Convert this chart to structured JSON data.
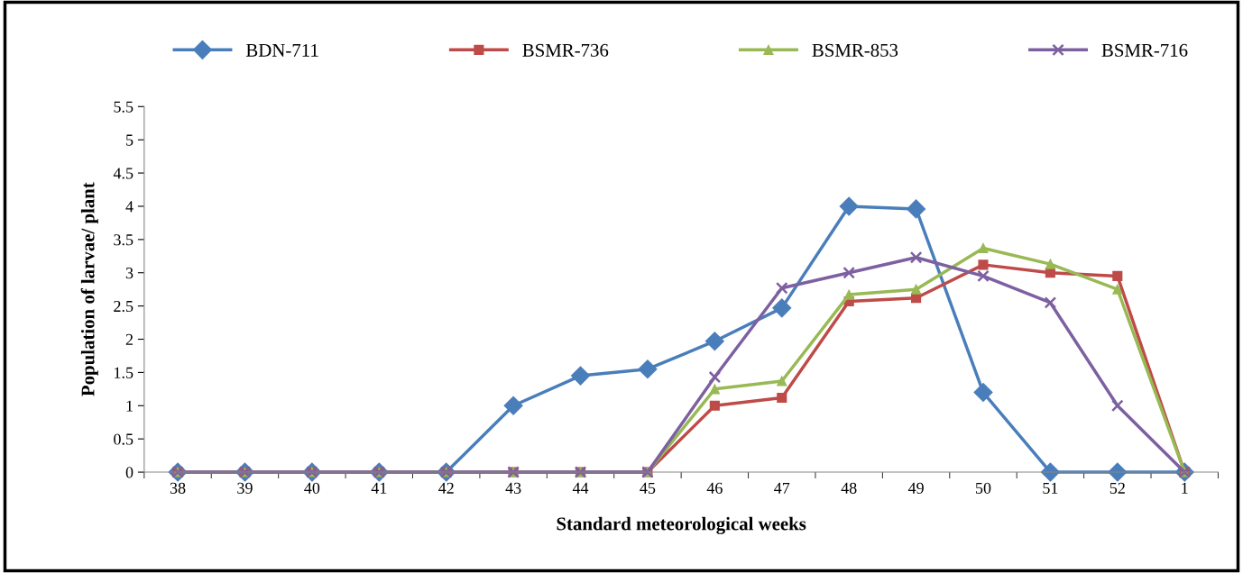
{
  "chart_data": {
    "type": "line",
    "xlabel": "Standard meteorological weeks",
    "ylabel": "Population of larvae/ plant",
    "categories": [
      "38",
      "39",
      "40",
      "41",
      "42",
      "43",
      "44",
      "45",
      "46",
      "47",
      "48",
      "49",
      "50",
      "51",
      "52",
      "1"
    ],
    "ylim": [
      0,
      5.5
    ],
    "yticks": [
      0,
      0.5,
      1,
      1.5,
      2,
      2.5,
      3,
      3.5,
      4,
      4.5,
      5,
      5.5
    ],
    "grid": false,
    "legend": "top",
    "series": [
      {
        "name": "BDN-711",
        "color": "#4a7ebb",
        "marker": "diamond",
        "values": [
          0,
          0,
          0,
          0,
          0,
          1,
          1.45,
          1.55,
          1.97,
          2.47,
          4,
          3.96,
          1.2,
          0,
          0,
          0
        ]
      },
      {
        "name": "BSMR-736",
        "color": "#be4b48",
        "marker": "square",
        "values": [
          0,
          0,
          0,
          0,
          0,
          0,
          0,
          0,
          1,
          1.12,
          2.57,
          2.62,
          3.12,
          3,
          2.95,
          0
        ]
      },
      {
        "name": "BSMR-853",
        "color": "#98b954",
        "marker": "triangle",
        "values": [
          0,
          0,
          0,
          0,
          0,
          0,
          0,
          0,
          1.25,
          1.37,
          2.67,
          2.75,
          3.37,
          3.13,
          2.75,
          0
        ]
      },
      {
        "name": "BSMR-716",
        "color": "#7d60a0",
        "marker": "cross",
        "values": [
          0,
          0,
          0,
          0,
          0,
          0,
          0,
          0,
          1.43,
          2.77,
          3,
          3.23,
          2.95,
          2.55,
          1,
          0
        ]
      }
    ]
  }
}
